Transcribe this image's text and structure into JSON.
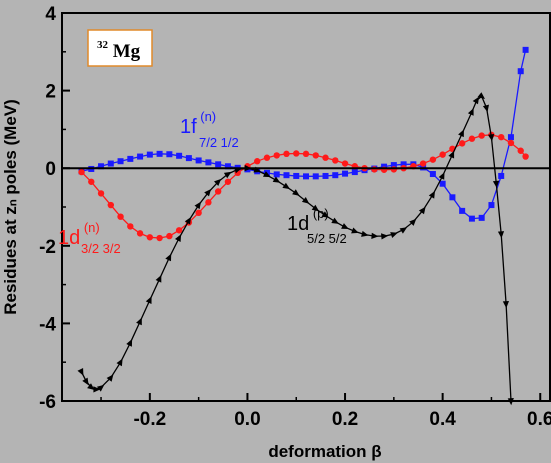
{
  "chart_data": {
    "type": "line",
    "xlabel": "deformation β",
    "ylabel": "Residues at zₙ poles (MeV)",
    "xlim": [
      -0.38,
      0.62
    ],
    "ylim": [
      -6,
      4
    ],
    "xticks": [
      "-0.2",
      "0.0",
      "0.2",
      "0.4",
      "0.6"
    ],
    "xtick_values": [
      -0.2,
      0.0,
      0.2,
      0.4,
      0.6
    ],
    "yticks": [
      "4",
      "2",
      "0",
      "-2",
      "-4",
      "-6"
    ],
    "ytick_values": [
      4,
      2,
      0,
      -2,
      -4,
      -6
    ],
    "reference_line_y": 0,
    "grid": false,
    "nucleus_label": {
      "mass": "32",
      "element": "Mg"
    },
    "series": [
      {
        "name": "1f(n) 7/2 1/2",
        "label_main": "1f",
        "label_sup": "(n)",
        "label_sub": "7/2 1/2",
        "color": "#1a1aff",
        "marker": "square",
        "x": [
          -0.34,
          -0.32,
          -0.3,
          -0.28,
          -0.26,
          -0.24,
          -0.22,
          -0.2,
          -0.18,
          -0.16,
          -0.14,
          -0.12,
          -0.1,
          -0.08,
          -0.06,
          -0.04,
          -0.02,
          0.0,
          0.02,
          0.04,
          0.06,
          0.08,
          0.1,
          0.12,
          0.14,
          0.16,
          0.18,
          0.2,
          0.22,
          0.24,
          0.26,
          0.28,
          0.3,
          0.32,
          0.34,
          0.36,
          0.38,
          0.4,
          0.42,
          0.44,
          0.46,
          0.48,
          0.5,
          0.52,
          0.54,
          0.56,
          0.57
        ],
        "y": [
          -0.08,
          -0.02,
          0.05,
          0.12,
          0.18,
          0.24,
          0.3,
          0.35,
          0.37,
          0.36,
          0.32,
          0.26,
          0.2,
          0.15,
          0.1,
          0.05,
          0.01,
          -0.03,
          -0.08,
          -0.12,
          -0.16,
          -0.18,
          -0.2,
          -0.21,
          -0.21,
          -0.2,
          -0.18,
          -0.14,
          -0.1,
          -0.05,
          -0.01,
          0.04,
          0.08,
          0.1,
          0.1,
          0.02,
          -0.15,
          -0.4,
          -0.75,
          -1.1,
          -1.3,
          -1.28,
          -0.95,
          -0.2,
          0.8,
          2.5,
          3.05
        ]
      },
      {
        "name": "1d(n) 3/2 3/2",
        "label_main": "1d",
        "label_sup": "(n)",
        "label_sub": "3/2 3/2",
        "color": "#ff1a1a",
        "marker": "circle",
        "x": [
          -0.34,
          -0.32,
          -0.3,
          -0.28,
          -0.26,
          -0.24,
          -0.22,
          -0.2,
          -0.18,
          -0.16,
          -0.14,
          -0.12,
          -0.1,
          -0.08,
          -0.06,
          -0.04,
          -0.02,
          0.0,
          0.02,
          0.04,
          0.06,
          0.08,
          0.1,
          0.12,
          0.14,
          0.16,
          0.18,
          0.2,
          0.22,
          0.24,
          0.26,
          0.28,
          0.3,
          0.32,
          0.34,
          0.36,
          0.38,
          0.4,
          0.42,
          0.44,
          0.46,
          0.48,
          0.5,
          0.52,
          0.54,
          0.56,
          0.57
        ],
        "y": [
          -0.1,
          -0.35,
          -0.65,
          -0.95,
          -1.25,
          -1.5,
          -1.68,
          -1.78,
          -1.8,
          -1.75,
          -1.6,
          -1.4,
          -1.15,
          -0.88,
          -0.6,
          -0.35,
          -0.12,
          0.05,
          0.18,
          0.27,
          0.33,
          0.37,
          0.38,
          0.37,
          0.33,
          0.27,
          0.2,
          0.12,
          0.05,
          0.0,
          -0.03,
          -0.04,
          -0.03,
          0.0,
          0.05,
          0.12,
          0.22,
          0.35,
          0.5,
          0.64,
          0.76,
          0.84,
          0.86,
          0.8,
          0.65,
          0.45,
          0.3
        ]
      },
      {
        "name": "1d(p) 5/2 5/2",
        "label_main": "1d",
        "label_sup": "(p)",
        "label_sub": "5/2 5/2",
        "color": "#000000",
        "marker": "triangle",
        "x": [
          -0.34,
          -0.33,
          -0.32,
          -0.31,
          -0.3,
          -0.28,
          -0.26,
          -0.24,
          -0.22,
          -0.2,
          -0.18,
          -0.16,
          -0.14,
          -0.12,
          -0.1,
          -0.08,
          -0.06,
          -0.04,
          -0.02,
          0.0,
          0.02,
          0.04,
          0.06,
          0.08,
          0.1,
          0.12,
          0.14,
          0.16,
          0.18,
          0.2,
          0.22,
          0.24,
          0.26,
          0.28,
          0.3,
          0.32,
          0.34,
          0.36,
          0.38,
          0.4,
          0.42,
          0.44,
          0.46,
          0.47,
          0.48,
          0.49,
          0.5,
          0.51,
          0.52,
          0.53,
          0.54
        ],
        "y": [
          -5.25,
          -5.5,
          -5.65,
          -5.7,
          -5.65,
          -5.4,
          -5.0,
          -4.5,
          -3.95,
          -3.4,
          -2.85,
          -2.3,
          -1.8,
          -1.35,
          -0.95,
          -0.62,
          -0.35,
          -0.15,
          -0.03,
          0.0,
          -0.06,
          -0.18,
          -0.32,
          -0.48,
          -0.65,
          -0.85,
          -1.05,
          -1.22,
          -1.38,
          -1.52,
          -1.63,
          -1.71,
          -1.75,
          -1.75,
          -1.7,
          -1.58,
          -1.38,
          -1.08,
          -0.68,
          -0.2,
          0.35,
          0.9,
          1.45,
          1.75,
          1.85,
          1.55,
          0.8,
          -0.4,
          -1.7,
          -3.5,
          -6.0
        ]
      }
    ]
  }
}
